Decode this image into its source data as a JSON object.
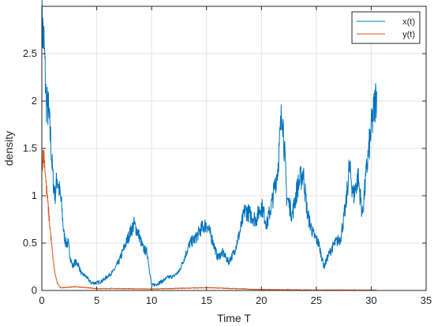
{
  "chart_data": {
    "type": "line",
    "xlabel": "Time T",
    "ylabel": "density",
    "xlim": [
      0,
      35
    ],
    "ylim": [
      0,
      3
    ],
    "xticks": [
      0,
      5,
      10,
      15,
      20,
      25,
      30,
      35
    ],
    "yticks": [
      0,
      0.5,
      1,
      1.5,
      2,
      2.5
    ],
    "ytick_labels": [
      "0",
      "0.5",
      "1",
      "1.5",
      "2",
      "2.5"
    ],
    "grid": true,
    "legend_position": "top-right",
    "series": [
      {
        "name": "x(t)",
        "color": "#0072BD",
        "points": [
          [
            0,
            2.85
          ],
          [
            0.2,
            2.6
          ],
          [
            0.4,
            2.0
          ],
          [
            0.6,
            1.9
          ],
          [
            0.8,
            1.6
          ],
          [
            1.0,
            1.2
          ],
          [
            1.2,
            1.0
          ],
          [
            1.4,
            1.2
          ],
          [
            1.6,
            1.05
          ],
          [
            1.8,
            0.9
          ],
          [
            2.0,
            0.6
          ],
          [
            2.2,
            0.5
          ],
          [
            2.4,
            0.5
          ],
          [
            2.6,
            0.35
          ],
          [
            2.8,
            0.25
          ],
          [
            3.0,
            0.3
          ],
          [
            3.3,
            0.28
          ],
          [
            3.6,
            0.18
          ],
          [
            4.0,
            0.15
          ],
          [
            4.5,
            0.08
          ],
          [
            5.0,
            0.08
          ],
          [
            5.5,
            0.1
          ],
          [
            6.0,
            0.15
          ],
          [
            6.5,
            0.2
          ],
          [
            7.0,
            0.3
          ],
          [
            7.5,
            0.45
          ],
          [
            8.0,
            0.6
          ],
          [
            8.4,
            0.7
          ],
          [
            8.8,
            0.6
          ],
          [
            9.2,
            0.45
          ],
          [
            9.6,
            0.4
          ],
          [
            10.0,
            0.05
          ],
          [
            10.5,
            0.07
          ],
          [
            11.0,
            0.1
          ],
          [
            11.5,
            0.14
          ],
          [
            12.0,
            0.15
          ],
          [
            12.5,
            0.2
          ],
          [
            13.0,
            0.35
          ],
          [
            13.5,
            0.5
          ],
          [
            14.0,
            0.55
          ],
          [
            14.5,
            0.65
          ],
          [
            15.0,
            0.7
          ],
          [
            15.5,
            0.55
          ],
          [
            16.0,
            0.35
          ],
          [
            16.5,
            0.4
          ],
          [
            17.0,
            0.3
          ],
          [
            17.5,
            0.4
          ],
          [
            18.0,
            0.6
          ],
          [
            18.5,
            0.85
          ],
          [
            19.0,
            0.8
          ],
          [
            19.5,
            0.75
          ],
          [
            20.0,
            0.9
          ],
          [
            20.5,
            0.7
          ],
          [
            21.0,
            0.95
          ],
          [
            21.5,
            1.3
          ],
          [
            21.9,
            1.95
          ],
          [
            22.3,
            1.0
          ],
          [
            22.8,
            0.8
          ],
          [
            23.3,
            1.1
          ],
          [
            23.8,
            1.25
          ],
          [
            24.2,
            0.8
          ],
          [
            24.7,
            0.6
          ],
          [
            25.2,
            0.5
          ],
          [
            25.7,
            0.25
          ],
          [
            26.2,
            0.4
          ],
          [
            26.7,
            0.5
          ],
          [
            27.2,
            0.55
          ],
          [
            27.7,
            0.9
          ],
          [
            28.0,
            1.3
          ],
          [
            28.4,
            1.0
          ],
          [
            28.8,
            1.2
          ],
          [
            29.2,
            0.8
          ],
          [
            29.6,
            1.3
          ],
          [
            30.0,
            1.7
          ],
          [
            30.5,
            2.1
          ]
        ]
      },
      {
        "name": "y(t)",
        "color": "#D95319",
        "points": [
          [
            0,
            1.35
          ],
          [
            0.2,
            1.45
          ],
          [
            0.4,
            1.1
          ],
          [
            0.6,
            0.85
          ],
          [
            0.8,
            0.6
          ],
          [
            1.0,
            0.35
          ],
          [
            1.2,
            0.18
          ],
          [
            1.4,
            0.08
          ],
          [
            1.7,
            0.03
          ],
          [
            2.0,
            0.03
          ],
          [
            3.0,
            0.04
          ],
          [
            4.0,
            0.03
          ],
          [
            5.0,
            0.02
          ],
          [
            7.0,
            0.02
          ],
          [
            10.0,
            0.015
          ],
          [
            15.0,
            0.03
          ],
          [
            20.0,
            0.01
          ],
          [
            25.0,
            0.005
          ],
          [
            30.5,
            0.003
          ]
        ]
      }
    ]
  }
}
